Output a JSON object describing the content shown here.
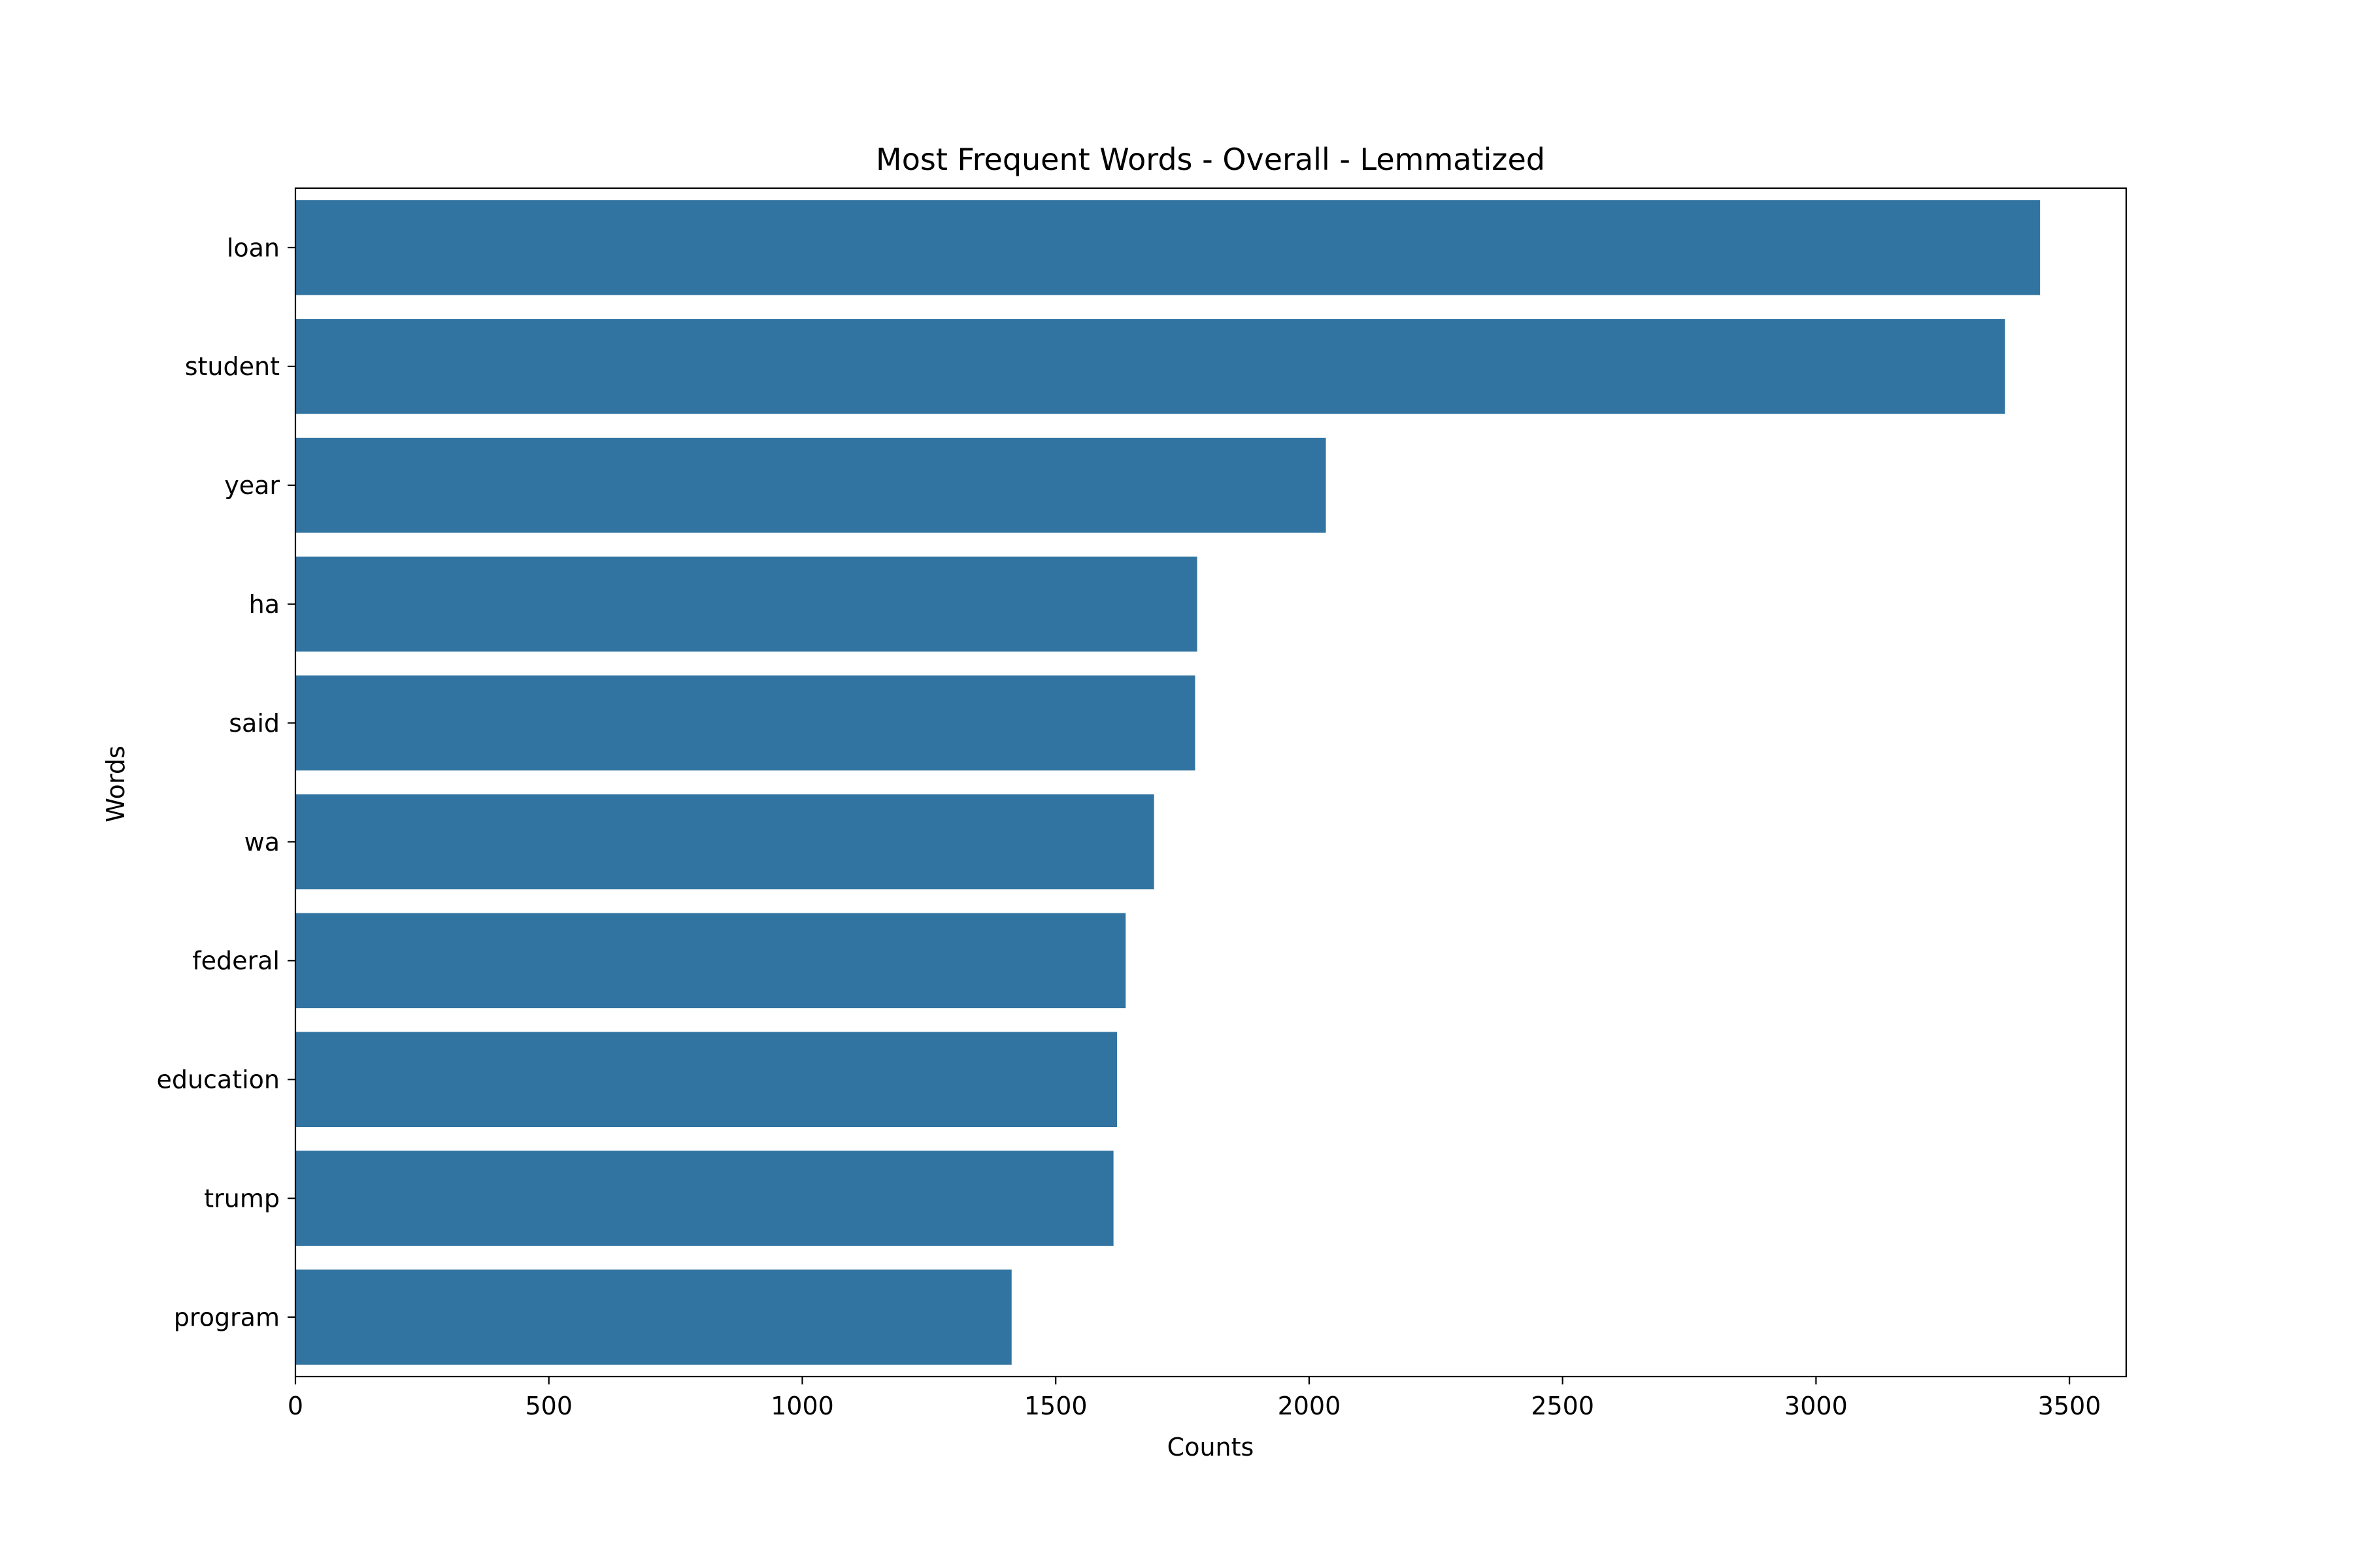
{
  "chart_data": {
    "type": "bar",
    "orientation": "horizontal",
    "title": "Most Frequent Words - Overall - Lemmatized",
    "xlabel": "Counts",
    "ylabel": "Words",
    "categories": [
      "loan",
      "student",
      "year",
      "ha",
      "said",
      "wa",
      "federal",
      "education",
      "trump",
      "program"
    ],
    "values": [
      3442,
      3373,
      2033,
      1779,
      1775,
      1694,
      1638,
      1621,
      1614,
      1413
    ],
    "xlim": [
      0,
      3612
    ],
    "xticks": [
      0,
      500,
      1000,
      1500,
      2000,
      2500,
      3000,
      3500
    ],
    "grid": false,
    "bar_color": "#3274a1"
  }
}
